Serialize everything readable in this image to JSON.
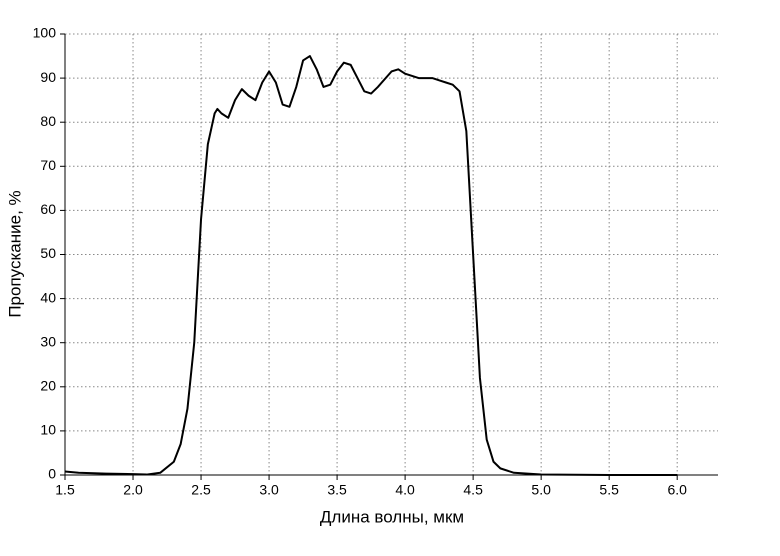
{
  "chart_data": {
    "type": "line",
    "x_label": "Длина волны, мкм",
    "y_label": "Пропускание, %",
    "xlim": [
      1.5,
      6.3
    ],
    "ylim": [
      0,
      100
    ],
    "xticks": [
      1.5,
      {
        "value": 2,
        "label": "2.0"
      },
      2.5,
      {
        "value": 3,
        "label": "3.0"
      },
      3.5,
      {
        "value": 4,
        "label": "4.0"
      },
      4.5,
      {
        "value": 5,
        "label": "5.0"
      },
      5.5,
      {
        "value": 6,
        "label": "6.0"
      }
    ],
    "yticks": [
      0,
      10,
      20,
      30,
      40,
      50,
      60,
      70,
      80,
      90,
      100
    ],
    "grid": true,
    "x": [
      1.5,
      1.6,
      1.8,
      2.0,
      2.1,
      2.2,
      2.3,
      2.35,
      2.4,
      2.45,
      2.5,
      2.55,
      2.6,
      2.62,
      2.65,
      2.7,
      2.75,
      2.8,
      2.85,
      2.9,
      2.95,
      3.0,
      3.05,
      3.1,
      3.15,
      3.2,
      3.25,
      3.3,
      3.35,
      3.4,
      3.45,
      3.5,
      3.55,
      3.6,
      3.65,
      3.7,
      3.75,
      3.8,
      3.9,
      3.95,
      4.0,
      4.1,
      4.2,
      4.25,
      4.3,
      4.35,
      4.4,
      4.45,
      4.5,
      4.55,
      4.6,
      4.65,
      4.7,
      4.8,
      5.0,
      5.5,
      6.0
    ],
    "series": [
      {
        "color": "#000000",
        "values": [
          0.8,
          0.5,
          0.3,
          0.2,
          0.1,
          0.5,
          3,
          7,
          15,
          30,
          58,
          75,
          82,
          83,
          82,
          81,
          85,
          87.5,
          86,
          85,
          89,
          91.5,
          89,
          84,
          83.5,
          88,
          94,
          95,
          92,
          88,
          88.5,
          91.5,
          93.5,
          93,
          90,
          87,
          86.5,
          88,
          91.5,
          92,
          91,
          90,
          90,
          89.5,
          89,
          88.5,
          87,
          78,
          50,
          22,
          8,
          3,
          1.5,
          0.5,
          0.1,
          0,
          0
        ]
      }
    ]
  }
}
